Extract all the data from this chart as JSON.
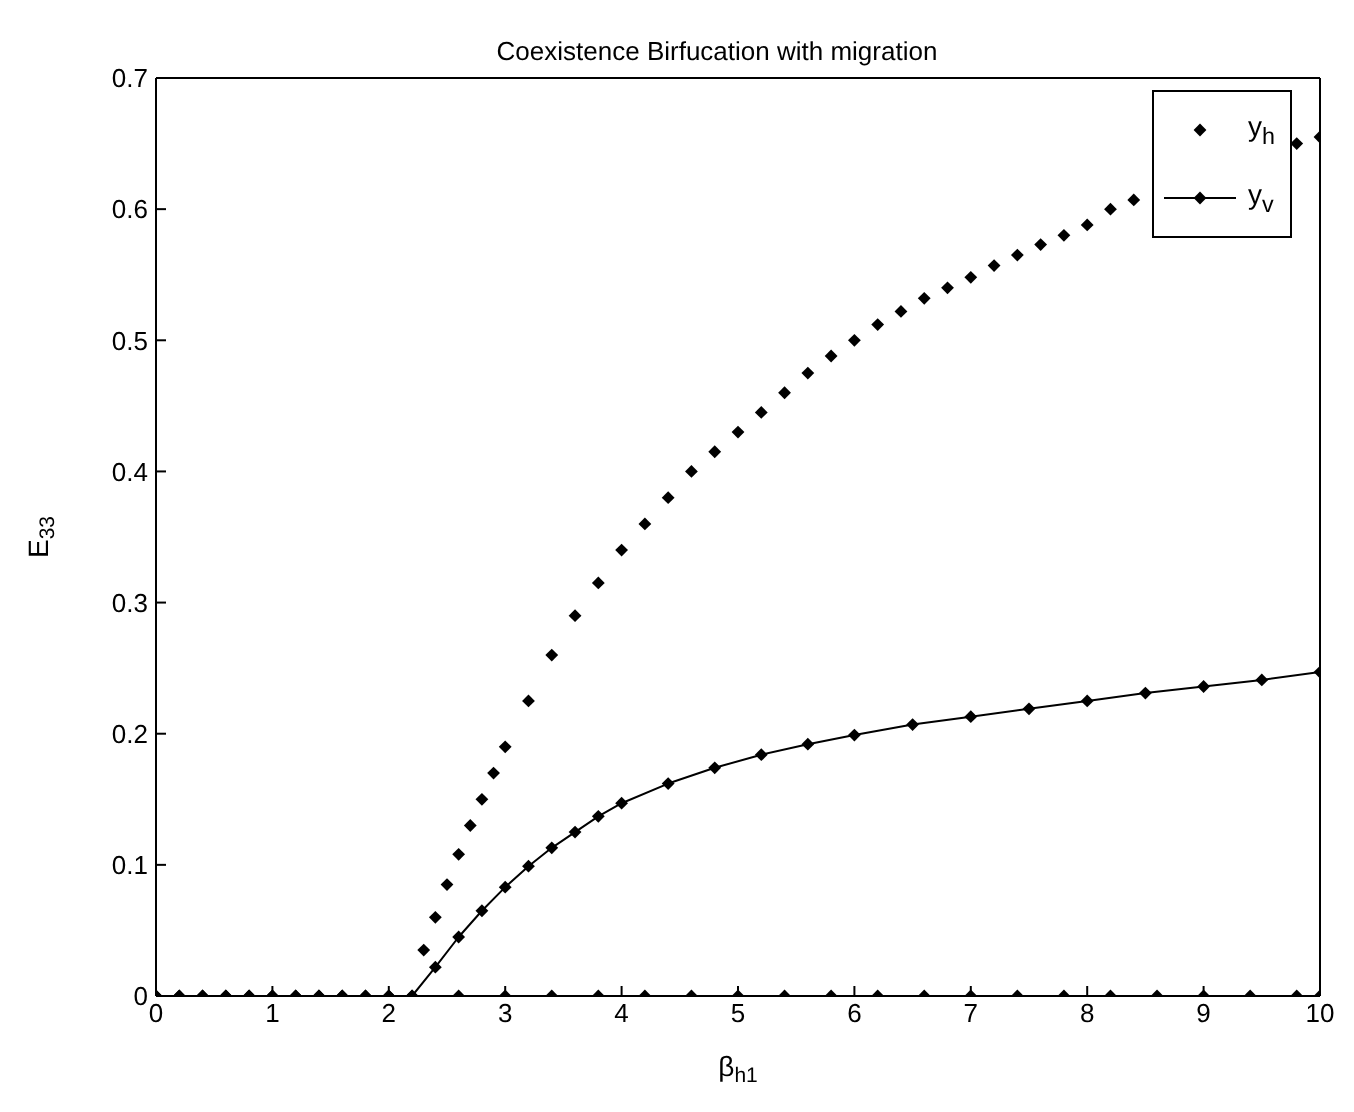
{
  "chart_data": {
    "type": "line",
    "title": "Coexistence Birfucation with migration",
    "xlabel": "β$_{h1}$",
    "ylabel": "E$_{33}$",
    "xlim": [
      0,
      10
    ],
    "xticks": [
      0,
      1,
      2,
      3,
      4,
      5,
      6,
      7,
      8,
      9,
      10
    ],
    "ylim": [
      0,
      0.7
    ],
    "yticks": [
      0,
      0.1,
      0.2,
      0.3,
      0.4,
      0.5,
      0.6,
      0.7
    ],
    "legend": "top right",
    "grid": false,
    "marker": "diamond",
    "line_style": "solid",
    "series": [
      {
        "name": "y$_{h}$",
        "type": "scatter",
        "color": "#000000",
        "x": [
          0,
          0.2,
          0.4,
          0.6,
          0.8,
          1,
          1.2,
          1.4,
          1.6,
          1.8,
          2,
          2.2,
          2.3,
          2.4,
          2.5,
          2.6,
          2.7,
          2.8,
          2.9,
          3,
          3.2,
          3.4,
          3.6,
          3.8,
          4,
          4.2,
          4.4,
          4.6,
          4.8,
          5,
          5.2,
          5.4,
          5.6,
          5.8,
          6,
          6.2,
          6.4,
          6.6,
          6.8,
          7,
          7.2,
          7.4,
          7.6,
          7.8,
          8,
          8.2,
          8.4,
          8.6,
          8.8,
          9,
          9.2,
          9.4,
          9.6,
          9.8,
          10
        ],
        "values": [
          0,
          0,
          0,
          0,
          0,
          0,
          0,
          0,
          0,
          0,
          0,
          0,
          0.035,
          0.06,
          0.085,
          0.108,
          0.13,
          0.15,
          0.17,
          0.19,
          0.225,
          0.26,
          0.29,
          0.315,
          0.34,
          0.36,
          0.38,
          0.4,
          0.415,
          0.43,
          0.445,
          0.46,
          0.475,
          0.488,
          0.5,
          0.512,
          0.522,
          0.532,
          0.54,
          0.548,
          0.557,
          0.565,
          0.573,
          0.58,
          0.588,
          0.6,
          0.607,
          null,
          null,
          null,
          null,
          null,
          null,
          0.65,
          0.655
        ]
      },
      {
        "name": "y$_{v}$",
        "type": "line",
        "color": "#000000",
        "x": [
          0,
          0.2,
          0.4,
          0.6,
          0.8,
          1,
          1.2,
          1.4,
          1.6,
          1.8,
          2,
          2.2,
          2.4,
          2.6,
          2.8,
          3,
          3.2,
          3.4,
          3.6,
          3.8,
          4,
          4.4,
          4.8,
          5.2,
          5.6,
          6,
          6.5,
          7,
          7.5,
          8,
          8.5,
          9,
          9.5,
          10
        ],
        "values": [
          0,
          0,
          0,
          0,
          0,
          0,
          0,
          0,
          0,
          0,
          0,
          0,
          0.022,
          0.045,
          0.065,
          0.083,
          0.099,
          0.113,
          0.125,
          0.137,
          0.147,
          0.162,
          0.174,
          0.184,
          0.192,
          0.199,
          0.207,
          0.213,
          0.219,
          0.225,
          0.231,
          0.236,
          0.241,
          0.247
        ]
      },
      {
        "type": "scatter",
        "color": "#000000",
        "x": [
          2.6,
          3,
          3.4,
          3.8,
          4.2,
          4.6,
          5,
          5.4,
          5.8,
          6.2,
          6.6,
          7,
          7.4,
          7.8,
          8.2,
          8.6,
          9,
          9.4,
          9.8,
          10
        ],
        "values": [
          0,
          0,
          0,
          0,
          0,
          0,
          0,
          0,
          0,
          0,
          0,
          0,
          0,
          0,
          0,
          0,
          0,
          0,
          0,
          0
        ]
      }
    ]
  }
}
